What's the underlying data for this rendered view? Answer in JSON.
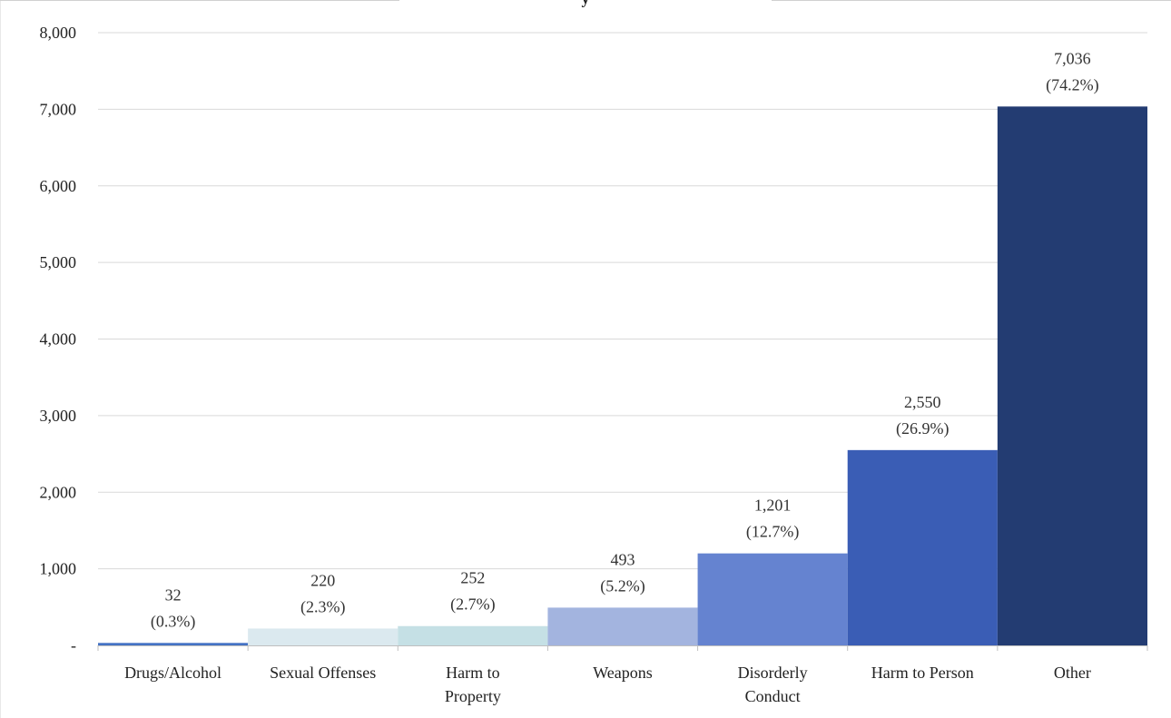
{
  "chart_data": {
    "type": "bar",
    "title": "",
    "title_visible_fragment": "y",
    "xlabel": "",
    "ylabel": "",
    "categories": [
      [
        "Drugs/Alcohol"
      ],
      [
        "Sexual Offenses"
      ],
      [
        "Harm to",
        "Property"
      ],
      [
        "Weapons"
      ],
      [
        "Disorderly",
        "Conduct"
      ],
      [
        "Harm to Person"
      ],
      [
        "Other"
      ]
    ],
    "values": [
      32,
      220,
      252,
      493,
      1201,
      2550,
      7036
    ],
    "value_labels": [
      "32",
      "220",
      "252",
      "493",
      "1,201",
      "2,550",
      "7,036"
    ],
    "percent_labels": [
      "(0.3%)",
      "(2.3%)",
      "(2.7%)",
      "(5.2%)",
      "(12.7%)",
      "(26.9%)",
      "(74.2%)"
    ],
    "bar_colors": [
      "#4472c4",
      "#dbe9ef",
      "#c5e0e5",
      "#a3b4df",
      "#6583d0",
      "#3a5db5",
      "#233c72"
    ],
    "ylim": [
      0,
      8000
    ],
    "yticks": [
      0,
      1000,
      2000,
      3000,
      4000,
      5000,
      6000,
      7000,
      8000
    ],
    "ytick_labels": [
      "-",
      "1,000",
      "2,000",
      "3,000",
      "4,000",
      "5,000",
      "6,000",
      "7,000",
      "8,000"
    ],
    "grid": true,
    "legend": "none"
  }
}
